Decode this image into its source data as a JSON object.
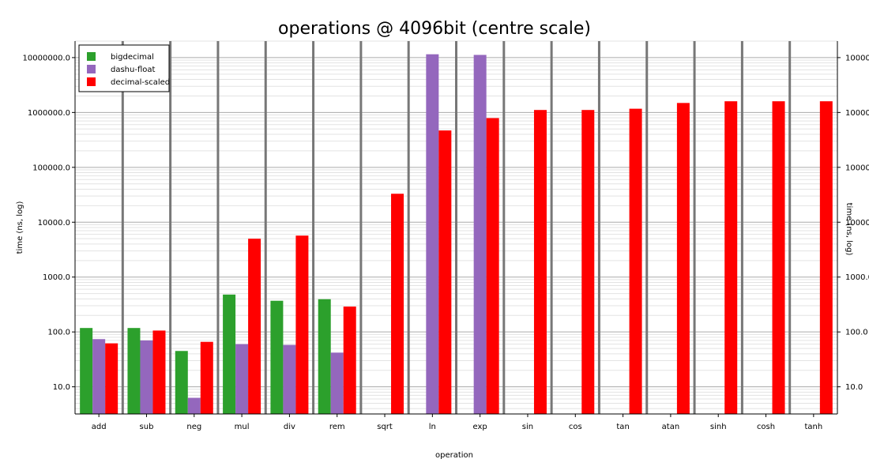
{
  "chart_data": {
    "type": "bar",
    "title": "operations @ 4096bit (centre scale)",
    "xlabel": "operation",
    "ylabel": "time (ns, log)",
    "ylabel_right": "time (ns, log)",
    "yscale": "log",
    "ylim": [
      3.2,
      20000000
    ],
    "grid": true,
    "legend_position": "top-left",
    "categories": [
      "add",
      "sub",
      "neg",
      "mul",
      "div",
      "rem",
      "sqrt",
      "ln",
      "exp",
      "sin",
      "cos",
      "tan",
      "atan",
      "sinh",
      "cosh",
      "tanh"
    ],
    "y_ticks": [
      10,
      100,
      1000,
      10000,
      100000,
      1000000,
      10000000
    ],
    "y_tick_labels": [
      "10.0",
      "100.0",
      "1000.0",
      "10000.0",
      "100000.0",
      "1000000.0",
      "10000000.0"
    ],
    "series": [
      {
        "name": "bigdecimal",
        "color": "#2ca02c",
        "values": [
          118,
          118,
          45,
          480,
          370,
          395,
          null,
          null,
          null,
          null,
          null,
          null,
          null,
          null,
          null,
          null
        ]
      },
      {
        "name": "dashu-float",
        "color": "#9467bd",
        "values": [
          74,
          70,
          6.3,
          60,
          58,
          42,
          null,
          11500000,
          11200000,
          null,
          null,
          null,
          null,
          null,
          null,
          null
        ]
      },
      {
        "name": "decimal-scaled",
        "color": "#ff0000",
        "values": [
          62,
          106,
          66,
          5000,
          5700,
          290,
          33000,
          470000,
          790000,
          1110000,
          1110000,
          1170000,
          1490000,
          1600000,
          1600000,
          1600000
        ]
      }
    ]
  }
}
